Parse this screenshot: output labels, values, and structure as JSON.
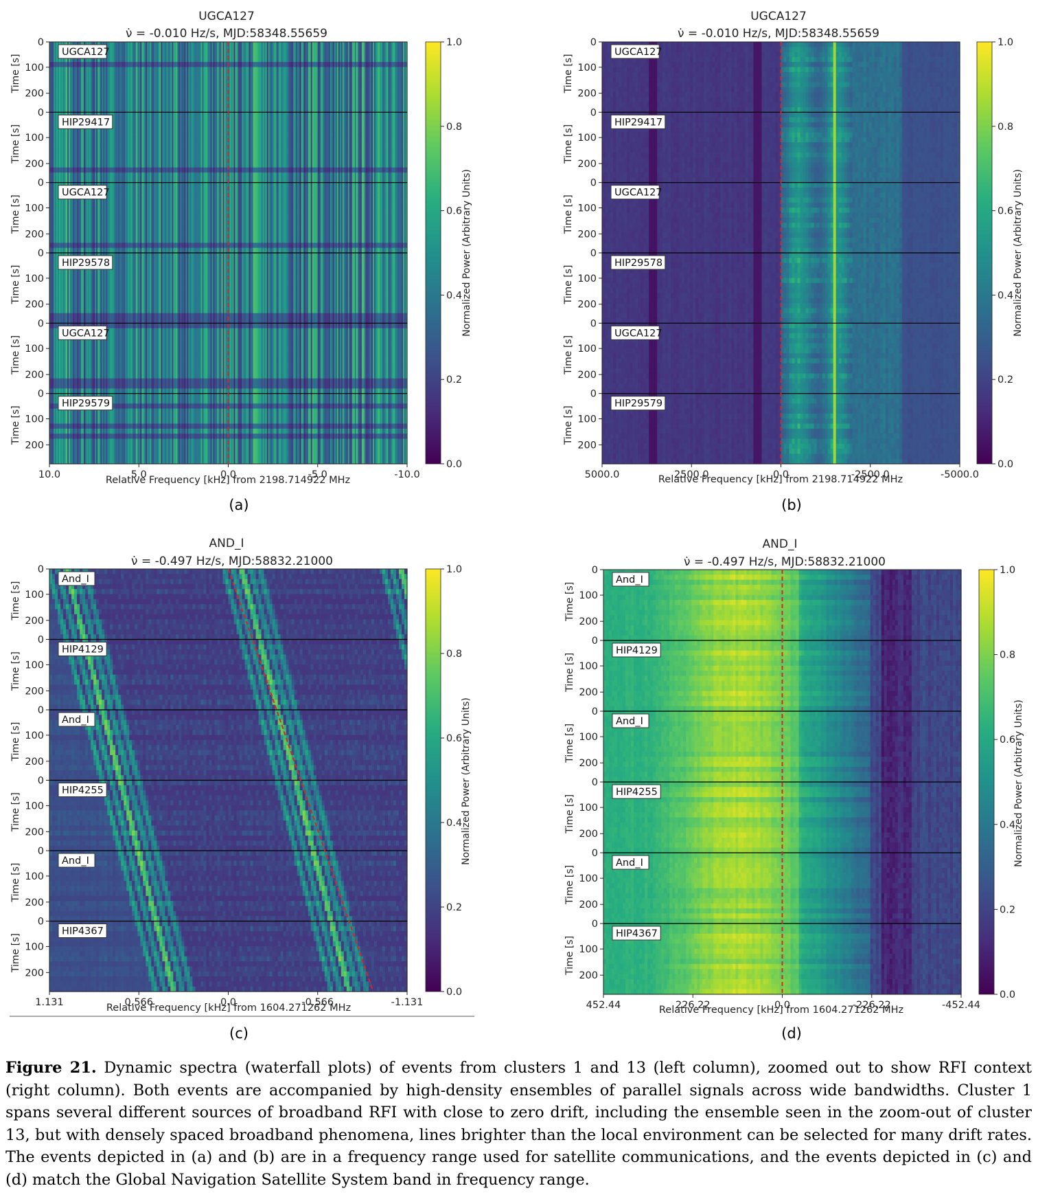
{
  "colors": {
    "colormap": [
      "#440154",
      "#472d7b",
      "#3b528b",
      "#2c728e",
      "#21918c",
      "#28ae80",
      "#5ec962",
      "#addc30",
      "#fde725"
    ],
    "drift_line": "#d62728"
  },
  "colorbar": {
    "label": "Normalized Power (Arbitrary Units)",
    "ticks": [
      "0.0",
      "0.2",
      "0.4",
      "0.6",
      "0.8",
      "1.0"
    ]
  },
  "common": {
    "ylabel": "Time [s]",
    "yticks": [
      "0",
      "100",
      "200"
    ],
    "xlabel_prefix": "Relative Frequency [kHz] from "
  },
  "panels": [
    {
      "id": "a",
      "sublabel": "(a)",
      "title1": "UGCA127",
      "title2": "ν̇ = -0.010 Hz/s, MJD:58348.55659",
      "xlabel": "Relative Frequency [kHz] from 2198.714922 MHz",
      "xticks": [
        "10.0",
        "5.0",
        "0.0",
        "-5.0",
        "-10.0"
      ],
      "rows": [
        "UGCA127",
        "HIP29417",
        "UGCA127",
        "HIP29578",
        "UGCA127",
        "HIP29579"
      ],
      "style": "dense"
    },
    {
      "id": "b",
      "sublabel": "(b)",
      "title1": "UGCA127",
      "title2": "ν̇ = -0.010 Hz/s, MJD:58348.55659",
      "xlabel": "Relative Frequency [kHz] from 2198.714922 MHz",
      "xticks": [
        "5000.0",
        "2500.0",
        "0.0",
        "-2500.0",
        "-5000.0"
      ],
      "rows": [
        "UGCA127",
        "HIP29417",
        "UGCA127",
        "HIP29578",
        "UGCA127",
        "HIP29579"
      ],
      "style": "wide"
    },
    {
      "id": "c",
      "sublabel": "(c)",
      "title1": "AND_I",
      "title2": "ν̇ = -0.497 Hz/s, MJD:58832.21000",
      "xlabel": "Relative Frequency [kHz] from 1604.271262 MHz",
      "xticks": [
        "1.131",
        "0.566",
        "0.0",
        "-0.566",
        "-1.131"
      ],
      "rows": [
        "And_I",
        "HIP4129",
        "And_I",
        "HIP4255",
        "And_I",
        "HIP4367"
      ],
      "style": "drift"
    },
    {
      "id": "d",
      "sublabel": "(d)",
      "title1": "AND_I",
      "title2": "ν̇ = -0.497 Hz/s, MJD:58832.21000",
      "xlabel": "Relative Frequency [kHz] from 1604.271262 MHz",
      "xticks": [
        "452.44",
        "226.22",
        "0.0",
        "-226.22",
        "-452.44"
      ],
      "rows": [
        "And_I",
        "HIP4129",
        "And_I",
        "HIP4255",
        "And_I",
        "HIP4367"
      ],
      "style": "bright"
    }
  ],
  "caption": {
    "label": "Figure 21.",
    "text": " Dynamic spectra (waterfall plots) of events from clusters 1 and 13 (left column), zoomed out to show RFI context (right column). Both events are accompanied by high-density ensembles of parallel signals across wide bandwidths. Cluster 1 spans several different sources of broadband RFI with close to zero drift, including the ensemble seen in the zoom-out of cluster 13, but with densely spaced broadband phenomena, lines brighter than the local environment can be selected for many drift rates. The events depicted in (a) and (b) are in a frequency range used for satellite communications, and the events depicted in (c) and (d) match the Global Navigation Satellite System band in frequency range."
  }
}
